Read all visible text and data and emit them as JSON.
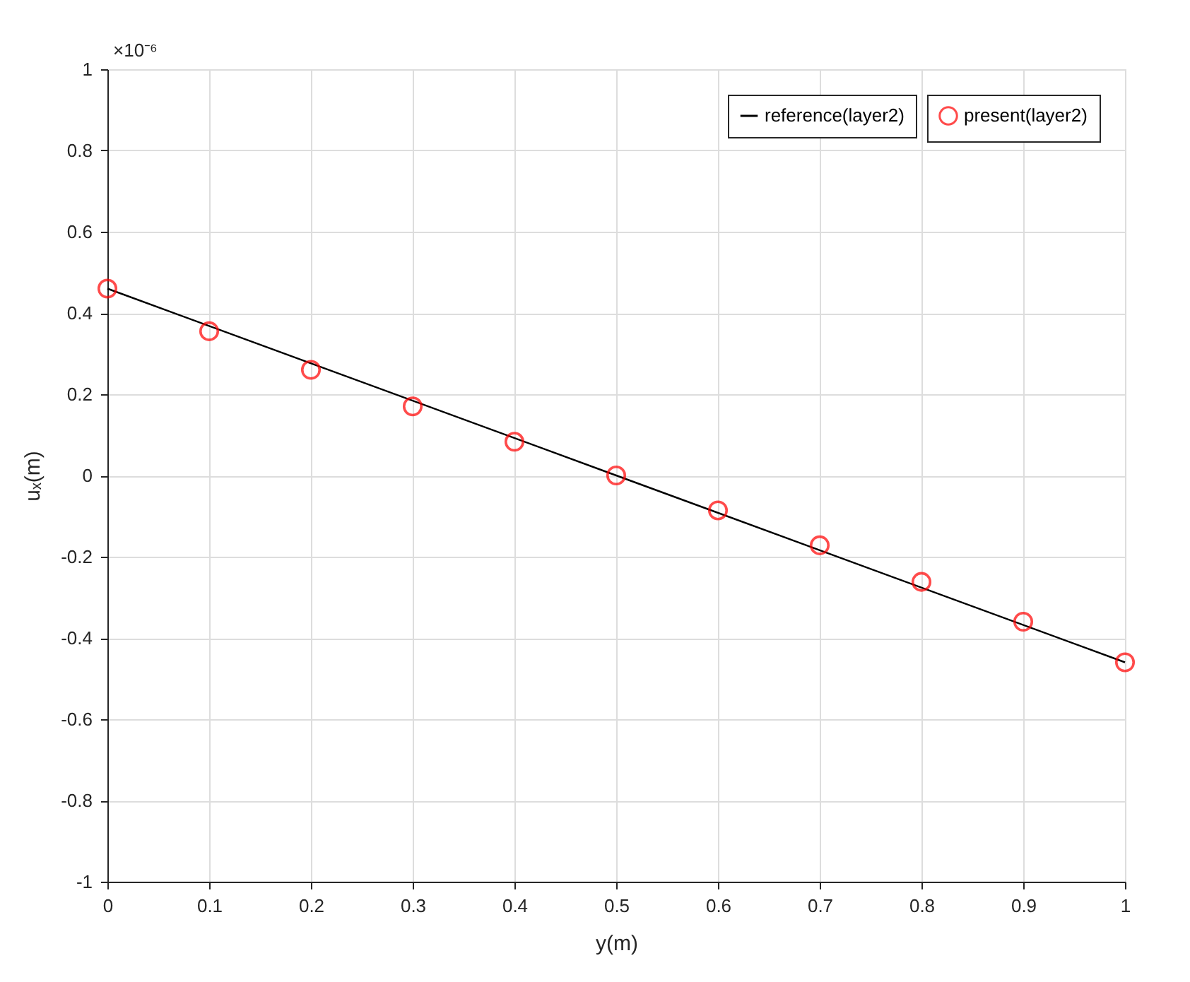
{
  "chart_data": {
    "type": "line",
    "xlabel": "y(m)",
    "ylabel": "uₓ(m)",
    "annotations": [
      "×10⁻⁶"
    ],
    "series": [
      {
        "name": "reference(layer2)",
        "color": "#000000",
        "marker": "none",
        "line_style": "solid",
        "x": [
          0,
          0.5,
          1
        ],
        "values": [
          0.46,
          0,
          -0.46
        ]
      },
      {
        "name": "present(layer2)",
        "type": "scatter",
        "color": "#ff0000",
        "marker": "circle",
        "x": [
          0,
          0.1,
          0.2,
          0.3,
          0.4,
          0.5,
          0.6,
          0.7,
          0.8,
          0.9,
          1
        ],
        "values": [
          0.46,
          0.355,
          0.26,
          0.17,
          0.083,
          0,
          -0.086,
          -0.172,
          -0.262,
          -0.36,
          -0.46
        ]
      }
    ],
    "xlim": [
      0,
      1
    ],
    "xticks": [
      0,
      0.1,
      0.2,
      0.3,
      0.4,
      0.5,
      0.6,
      0.7,
      0.8,
      0.9,
      1
    ],
    "ylim": [
      -1,
      1
    ],
    "yticks": [
      -1,
      -0.8,
      -0.6,
      -0.4,
      -0.2,
      0,
      0.2,
      0.4,
      0.6,
      0.8,
      1
    ],
    "grid": true,
    "legend": "top right"
  }
}
